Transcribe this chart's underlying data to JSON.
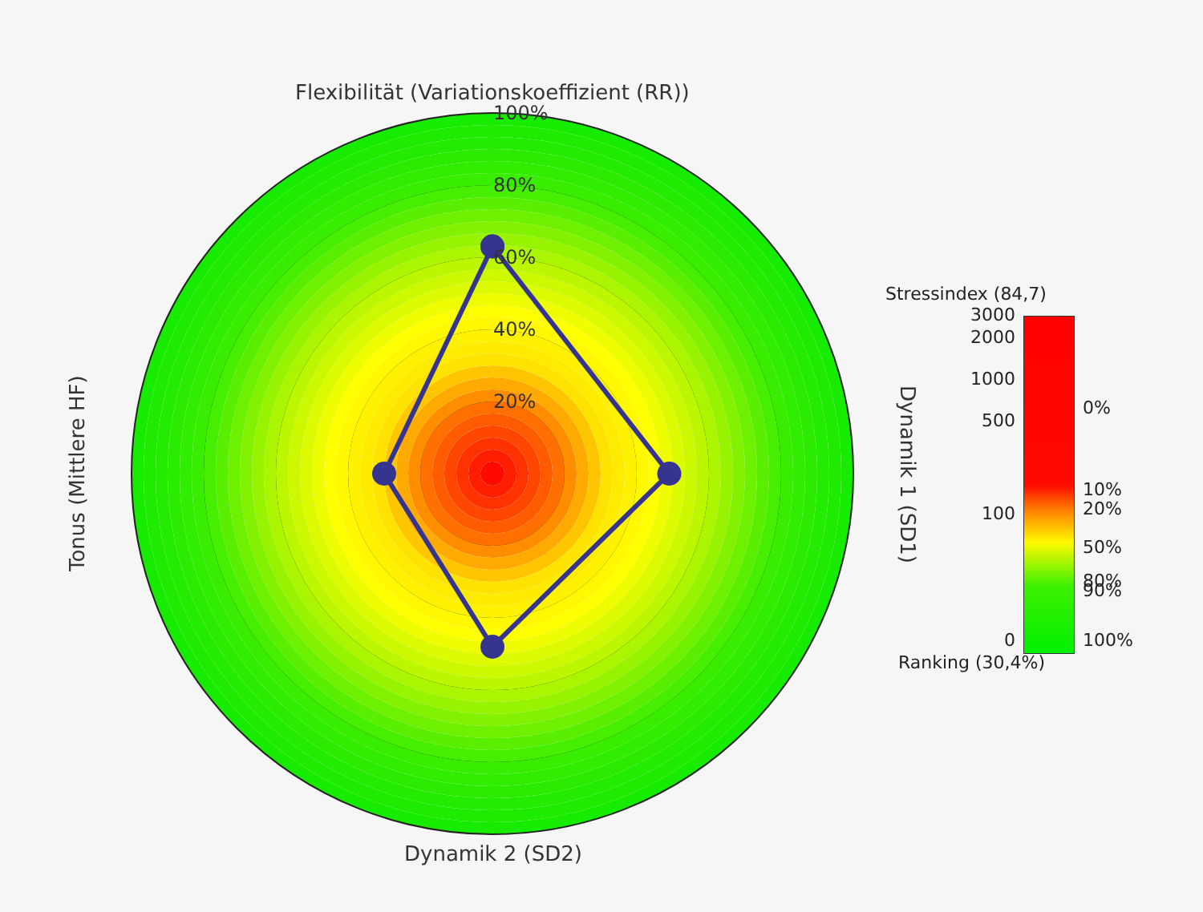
{
  "chart_data": [
    {
      "type": "radar",
      "categories": [
        "Flexibilität (Variationskoeffizient (RR))",
        "Dynamik 1 (SD1)",
        "Dynamik 2 (SD2)",
        "Tonus (Mittlere HF)"
      ],
      "series": [
        {
          "color": "#35358f",
          "values": [
            63,
            49,
            48,
            30
          ]
        }
      ],
      "ylim": [
        0,
        100
      ],
      "yticks": [
        {
          "value": 20,
          "label": "20%"
        },
        {
          "value": 40,
          "label": "40%"
        },
        {
          "value": 60,
          "label": "60%"
        },
        {
          "value": 80,
          "label": "80%"
        },
        {
          "value": 100,
          "label": "100%"
        }
      ],
      "grid": true,
      "marker": "circle",
      "line_style": "solid"
    },
    {
      "type": "other",
      "title": "Stressindex (84,7)",
      "xlabel": "Ranking (30,4%)",
      "annotations": [
        "3000",
        "2000",
        "1000",
        "500",
        "100",
        "0",
        "0%",
        "10%",
        "20%",
        "50%",
        "80%",
        "90%",
        "100%"
      ]
    }
  ]
}
